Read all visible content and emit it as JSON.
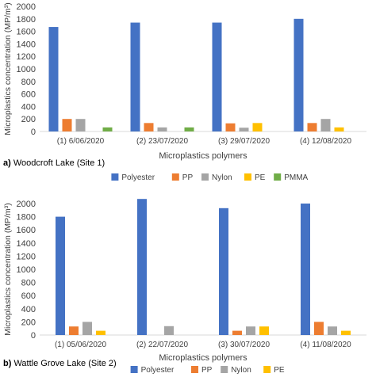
{
  "chart_data": [
    {
      "type": "bar",
      "panel_label": "a)",
      "panel_title": "Woodcroft Lake (Site 1)",
      "categories": [
        "(1) 6/06/2020",
        "(2) 23/07/2020",
        "(3) 29/07/2020",
        "(4) 12/08/2020"
      ],
      "series": [
        {
          "name": "Polyester",
          "color": "#4472C4",
          "values": [
            1670,
            1740,
            1740,
            1800
          ]
        },
        {
          "name": "PP",
          "color": "#ED7D31",
          "values": [
            200,
            135,
            130,
            135
          ]
        },
        {
          "name": "Nylon",
          "color": "#A5A5A5",
          "values": [
            200,
            65,
            60,
            200
          ]
        },
        {
          "name": "PE",
          "color": "#FFC000",
          "values": [
            0,
            0,
            135,
            65
          ]
        },
        {
          "name": "PMMA",
          "color": "#70AD47",
          "values": [
            65,
            65,
            0,
            0
          ]
        }
      ],
      "xlabel": "Microplastics polymers",
      "ylabel": "Microplastics concentration (MP/m³)",
      "ylim": [
        0,
        2000
      ],
      "yticks": [
        "0",
        "200",
        "400",
        "600",
        "800",
        "1000",
        "1200",
        "1400",
        "1600",
        "1800",
        "2000"
      ],
      "legend_position": "bottom",
      "grid": false
    },
    {
      "type": "bar",
      "panel_label": "b)",
      "panel_title": "Wattle Grove Lake (Site 2)",
      "categories": [
        "(1) 05/06/2020",
        "(2) 22/07/2020",
        "(3) 30/07/2020",
        "(4) 11/08/2020"
      ],
      "series": [
        {
          "name": "Polyester",
          "color": "#4472C4",
          "values": [
            1800,
            2070,
            1930,
            2000
          ]
        },
        {
          "name": "PP",
          "color": "#ED7D31",
          "values": [
            130,
            0,
            65,
            200
          ]
        },
        {
          "name": "Nylon",
          "color": "#A5A5A5",
          "values": [
            200,
            135,
            130,
            130
          ]
        },
        {
          "name": "PE",
          "color": "#FFC000",
          "values": [
            65,
            0,
            130,
            65
          ]
        }
      ],
      "xlabel": "Microplastics polymers",
      "ylabel": "Microplastics concentration (MP/m³)",
      "ylim": [
        0,
        2000
      ],
      "yticks": [
        "0",
        "200",
        "400",
        "600",
        "800",
        "1000",
        "1200",
        "1400",
        "1600",
        "1800",
        "2000"
      ],
      "legend_position": "bottom",
      "grid": false
    }
  ]
}
